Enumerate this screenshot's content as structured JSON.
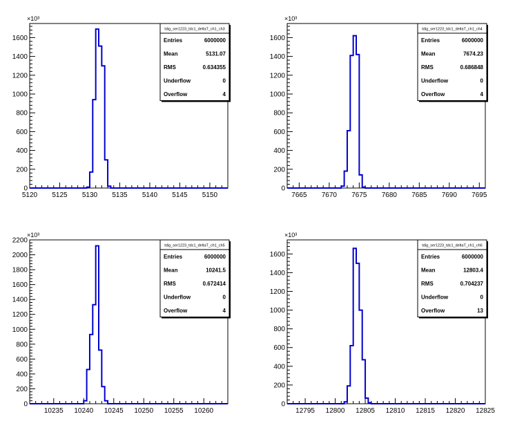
{
  "chart_data": [
    {
      "type": "histogram",
      "title": "tdig_ser1223_tdc1_deltaT_ch1_ch3",
      "exponent_label": "×10³",
      "xlim": [
        5120,
        5153
      ],
      "ylim": [
        0,
        1750
      ],
      "x_ticks": [
        5120,
        5125,
        5130,
        5135,
        5140,
        5145,
        5150
      ],
      "y_ticks": [
        0,
        200,
        400,
        600,
        800,
        1000,
        1200,
        1400,
        1600
      ],
      "bin_width": 0.5,
      "bins": [
        {
          "x": 5129.5,
          "y": 10
        },
        {
          "x": 5130.0,
          "y": 170
        },
        {
          "x": 5130.5,
          "y": 940
        },
        {
          "x": 5131.0,
          "y": 1690
        },
        {
          "x": 5131.5,
          "y": 1510
        },
        {
          "x": 5132.0,
          "y": 1300
        },
        {
          "x": 5132.5,
          "y": 300
        },
        {
          "x": 5133.0,
          "y": 20
        }
      ],
      "stats": [
        {
          "label": "Entries",
          "value": "6000000"
        },
        {
          "label": "Mean",
          "value": "5131.07"
        },
        {
          "label": "RMS",
          "value": "0.634355"
        },
        {
          "label": "Underflow",
          "value": "0"
        },
        {
          "label": "Overflow",
          "value": "4"
        }
      ],
      "line_color": "#0000cc"
    },
    {
      "type": "histogram",
      "title": "tdig_ser1223_tdc1_deltaT_ch1_ch4",
      "exponent_label": "×10³",
      "xlim": [
        7663,
        7696
      ],
      "ylim": [
        0,
        1750
      ],
      "x_ticks": [
        7665,
        7670,
        7675,
        7680,
        7685,
        7690,
        7695
      ],
      "y_ticks": [
        0,
        200,
        400,
        600,
        800,
        1000,
        1200,
        1400,
        1600
      ],
      "bin_width": 0.5,
      "bins": [
        {
          "x": 7672.0,
          "y": 20
        },
        {
          "x": 7672.5,
          "y": 180
        },
        {
          "x": 7673.0,
          "y": 610
        },
        {
          "x": 7673.5,
          "y": 1410
        },
        {
          "x": 7674.0,
          "y": 1620
        },
        {
          "x": 7674.5,
          "y": 1420
        },
        {
          "x": 7675.0,
          "y": 140
        },
        {
          "x": 7675.5,
          "y": 10
        }
      ],
      "stats": [
        {
          "label": "Entries",
          "value": "6000000"
        },
        {
          "label": "Mean",
          "value": "7674.23"
        },
        {
          "label": "RMS",
          "value": "0.686848"
        },
        {
          "label": "Underflow",
          "value": "0"
        },
        {
          "label": "Overflow",
          "value": "4"
        }
      ],
      "line_color": "#0000cc"
    },
    {
      "type": "histogram",
      "title": "tdig_ser1223_tdc1_deltaT_ch1_ch5",
      "exponent_label": "×10³",
      "xlim": [
        10231,
        10264
      ],
      "ylim": [
        0,
        2200
      ],
      "x_ticks": [
        10235,
        10240,
        10245,
        10250,
        10255,
        10260
      ],
      "y_ticks": [
        0,
        200,
        400,
        600,
        800,
        1000,
        1200,
        1400,
        1600,
        1800,
        2000,
        2200
      ],
      "bin_width": 0.5,
      "bins": [
        {
          "x": 10240.0,
          "y": 40
        },
        {
          "x": 10240.5,
          "y": 460
        },
        {
          "x": 10241.0,
          "y": 930
        },
        {
          "x": 10241.5,
          "y": 1330
        },
        {
          "x": 10242.0,
          "y": 2120
        },
        {
          "x": 10242.5,
          "y": 720
        },
        {
          "x": 10243.0,
          "y": 230
        },
        {
          "x": 10243.5,
          "y": 40
        }
      ],
      "stats": [
        {
          "label": "Entries",
          "value": "6000000"
        },
        {
          "label": "Mean",
          "value": "10241.5"
        },
        {
          "label": "RMS",
          "value": "0.672414"
        },
        {
          "label": "Underflow",
          "value": "0"
        },
        {
          "label": "Overflow",
          "value": "4"
        }
      ],
      "line_color": "#0000cc"
    },
    {
      "type": "histogram",
      "title": "tdig_ser1223_tdc1_deltaT_ch1_ch6",
      "exponent_label": "×10³",
      "xlim": [
        12792,
        12825
      ],
      "ylim": [
        0,
        1750
      ],
      "x_ticks": [
        12795,
        12800,
        12805,
        12810,
        12815,
        12820,
        12825
      ],
      "y_ticks": [
        0,
        200,
        400,
        600,
        800,
        1000,
        1200,
        1400,
        1600
      ],
      "bin_width": 0.5,
      "bins": [
        {
          "x": 12801.5,
          "y": 20
        },
        {
          "x": 12802.0,
          "y": 190
        },
        {
          "x": 12802.5,
          "y": 620
        },
        {
          "x": 12803.0,
          "y": 1660
        },
        {
          "x": 12803.5,
          "y": 1500
        },
        {
          "x": 12804.0,
          "y": 1000
        },
        {
          "x": 12804.5,
          "y": 470
        },
        {
          "x": 12805.0,
          "y": 60
        },
        {
          "x": 12805.5,
          "y": 10
        }
      ],
      "stats": [
        {
          "label": "Entries",
          "value": "6000000"
        },
        {
          "label": "Mean",
          "value": "12803.4"
        },
        {
          "label": "RMS",
          "value": "0.704237"
        },
        {
          "label": "Underflow",
          "value": "0"
        },
        {
          "label": "Overflow",
          "value": "13"
        }
      ],
      "line_color": "#0000cc"
    }
  ]
}
